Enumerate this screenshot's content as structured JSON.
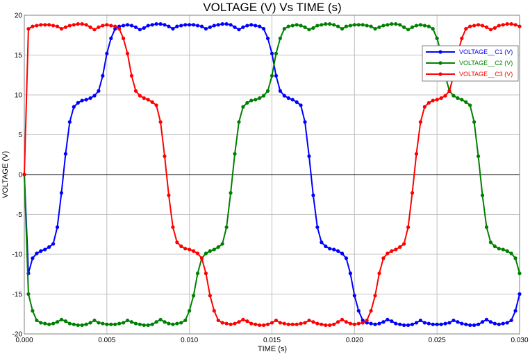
{
  "chart_data": {
    "type": "line",
    "title": "VOLTAGE (V) Vs TIME (s)",
    "xlabel": "TIME (s)",
    "ylabel": "VOLTAGE (V)",
    "xlim": [
      0,
      0.03
    ],
    "ylim": [
      -20,
      20
    ],
    "x_ticks": [
      "0.000",
      "0.005",
      "0.010",
      "0.015",
      "0.020",
      "0.025",
      "0.030"
    ],
    "y_ticks": [
      "-20",
      "-15",
      "-10",
      "-5",
      "0",
      "5",
      "10",
      "15",
      "20"
    ],
    "grid": true,
    "legend": "top-right",
    "x": [
      0.0,
      0.00025,
      0.0005,
      0.00075,
      0.001,
      0.00125,
      0.0015,
      0.00175,
      0.002,
      0.00225,
      0.0025,
      0.00275,
      0.003,
      0.00325,
      0.0035,
      0.00375,
      0.004,
      0.00425,
      0.0045,
      0.00475,
      0.005,
      0.00525,
      0.0055,
      0.00575,
      0.006,
      0.00625,
      0.0065,
      0.00675,
      0.007,
      0.00725,
      0.0075,
      0.00775,
      0.008,
      0.00825,
      0.0085,
      0.00875,
      0.009,
      0.00925,
      0.0095,
      0.00975,
      0.01,
      0.01025,
      0.0105,
      0.01075,
      0.011,
      0.01125,
      0.0115,
      0.01175,
      0.012,
      0.01225,
      0.0125,
      0.01275,
      0.013,
      0.01325,
      0.0135,
      0.01375,
      0.014,
      0.01425,
      0.0145,
      0.01475,
      0.015,
      0.01525,
      0.0155,
      0.01575,
      0.016,
      0.01625,
      0.0165,
      0.01675,
      0.017,
      0.01725,
      0.0175,
      0.01775,
      0.018,
      0.01825,
      0.0185,
      0.01875,
      0.019,
      0.01925,
      0.0195,
      0.01975,
      0.02,
      0.02025,
      0.0205,
      0.02075,
      0.021,
      0.02125,
      0.0215,
      0.02175,
      0.022,
      0.02225,
      0.0225,
      0.02275,
      0.023,
      0.02325,
      0.0235,
      0.02375,
      0.024,
      0.02425,
      0.0245,
      0.02475,
      0.025,
      0.02525,
      0.0255,
      0.02575,
      0.026,
      0.02625,
      0.0265,
      0.02675,
      0.027,
      0.02725,
      0.0275,
      0.02775,
      0.028,
      0.02825,
      0.0285,
      0.02875,
      0.029,
      0.02925,
      0.0295,
      0.02975,
      0.03
    ],
    "series": [
      {
        "name": "VOLTAGE__C1 (V)",
        "color": "#0000ff",
        "values": [
          0.0,
          -12.4,
          -10.5,
          -9.9,
          -9.6,
          -9.4,
          -9.1,
          -8.7,
          -6.6,
          -2.3,
          2.6,
          6.6,
          8.5,
          9.0,
          9.3,
          9.4,
          9.6,
          9.9,
          10.5,
          12.4,
          15.2,
          17.1,
          18.3,
          18.6,
          18.7,
          18.8,
          18.7,
          18.5,
          18.2,
          18.4,
          18.7,
          18.8,
          18.9,
          18.9,
          18.8,
          18.6,
          18.3,
          18.6,
          18.7,
          18.8,
          18.8,
          18.8,
          18.7,
          18.6,
          18.3,
          18.5,
          18.7,
          18.8,
          18.9,
          18.9,
          18.8,
          18.5,
          18.2,
          18.5,
          18.7,
          18.8,
          18.7,
          18.6,
          18.3,
          17.1,
          15.2,
          12.4,
          10.5,
          9.9,
          9.6,
          9.4,
          9.1,
          8.7,
          6.6,
          2.3,
          -2.6,
          -6.6,
          -8.5,
          -9.0,
          -9.3,
          -9.4,
          -9.6,
          -9.9,
          -10.5,
          -12.4,
          -15.2,
          -17.1,
          -18.3,
          -18.6,
          -18.7,
          -18.8,
          -18.7,
          -18.5,
          -18.2,
          -18.4,
          -18.7,
          -18.8,
          -18.9,
          -18.9,
          -18.8,
          -18.6,
          -18.3,
          -18.6,
          -18.7,
          -18.8,
          -18.8,
          -18.8,
          -18.7,
          -18.6,
          -18.3,
          -18.5,
          -18.7,
          -18.8,
          -18.9,
          -18.9,
          -18.8,
          -18.5,
          -18.2,
          -18.5,
          -18.7,
          -18.8,
          -18.7,
          -18.6,
          -18.3,
          -17.1,
          -15.0
        ]
      },
      {
        "name": "VOLTAGE__C2 (V)",
        "color": "#008000",
        "values": [
          0.0,
          -15.0,
          -17.1,
          -18.3,
          -18.6,
          -18.7,
          -18.8,
          -18.7,
          -18.5,
          -18.2,
          -18.4,
          -18.7,
          -18.8,
          -18.9,
          -18.9,
          -18.8,
          -18.6,
          -18.3,
          -18.6,
          -18.7,
          -18.8,
          -18.8,
          -18.8,
          -18.7,
          -18.6,
          -18.3,
          -18.5,
          -18.7,
          -18.8,
          -18.9,
          -18.9,
          -18.8,
          -18.5,
          -18.2,
          -18.5,
          -18.7,
          -18.8,
          -18.7,
          -18.6,
          -18.3,
          -17.1,
          -15.2,
          -12.4,
          -10.5,
          -9.9,
          -9.6,
          -9.4,
          -9.1,
          -8.7,
          -6.6,
          -2.3,
          2.6,
          6.6,
          8.5,
          9.0,
          9.3,
          9.4,
          9.6,
          9.9,
          10.5,
          12.4,
          15.2,
          17.1,
          18.3,
          18.6,
          18.7,
          18.8,
          18.7,
          18.5,
          18.2,
          18.4,
          18.7,
          18.8,
          18.9,
          18.9,
          18.8,
          18.6,
          18.3,
          18.6,
          18.7,
          18.8,
          18.8,
          18.8,
          18.7,
          18.6,
          18.3,
          18.5,
          18.7,
          18.8,
          18.9,
          18.9,
          18.8,
          18.5,
          18.2,
          18.5,
          18.7,
          18.8,
          18.7,
          18.6,
          18.3,
          17.1,
          15.2,
          12.4,
          10.5,
          9.9,
          9.6,
          9.4,
          9.1,
          8.7,
          6.6,
          2.3,
          -2.6,
          -6.6,
          -8.5,
          -9.0,
          -9.3,
          -9.4,
          -9.6,
          -9.9,
          -10.5,
          -12.4
        ]
      },
      {
        "name": "VOLTAGE__C3 (V)",
        "color": "#ff0000",
        "values": [
          0.0,
          18.3,
          18.6,
          18.7,
          18.8,
          18.8,
          18.8,
          18.7,
          18.6,
          18.3,
          18.5,
          18.7,
          18.8,
          18.9,
          18.9,
          18.8,
          18.5,
          18.2,
          18.5,
          18.7,
          18.8,
          18.7,
          18.6,
          18.3,
          17.1,
          15.2,
          12.4,
          10.5,
          9.9,
          9.6,
          9.4,
          9.1,
          8.7,
          6.6,
          2.3,
          -2.6,
          -6.6,
          -8.5,
          -9.0,
          -9.3,
          -9.4,
          -9.6,
          -9.9,
          -10.5,
          -12.4,
          -15.2,
          -17.1,
          -18.3,
          -18.6,
          -18.7,
          -18.8,
          -18.7,
          -18.5,
          -18.2,
          -18.4,
          -18.7,
          -18.8,
          -18.9,
          -18.9,
          -18.8,
          -18.6,
          -18.3,
          -18.6,
          -18.7,
          -18.8,
          -18.8,
          -18.8,
          -18.7,
          -18.6,
          -18.3,
          -18.5,
          -18.7,
          -18.8,
          -18.9,
          -18.9,
          -18.8,
          -18.5,
          -18.2,
          -18.5,
          -18.7,
          -18.8,
          -18.7,
          -18.6,
          -18.3,
          -17.1,
          -15.2,
          -12.4,
          -10.5,
          -9.9,
          -9.6,
          -9.4,
          -9.1,
          -8.7,
          -6.6,
          -2.3,
          2.6,
          6.6,
          8.5,
          9.0,
          9.3,
          9.4,
          9.6,
          9.9,
          10.5,
          12.4,
          15.2,
          17.1,
          18.3,
          18.6,
          18.7,
          18.8,
          18.7,
          18.5,
          18.2,
          18.4,
          18.7,
          18.8,
          18.9,
          18.9,
          18.8,
          18.6
        ]
      }
    ]
  }
}
